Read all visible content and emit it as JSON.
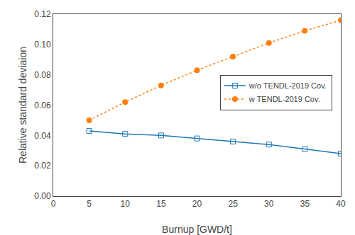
{
  "chart_data": {
    "type": "line",
    "xlabel": "Burnup [GWD/t]",
    "ylabel": "Relative standard deviaion",
    "x": [
      5,
      10,
      15,
      20,
      25,
      30,
      35,
      40
    ],
    "series": [
      {
        "name": "w/o TENDL-2019 Cov.",
        "marker": "square-open",
        "line_style": "solid",
        "values": [
          0.043,
          0.041,
          0.04,
          0.038,
          0.036,
          0.034,
          0.031,
          0.028
        ]
      },
      {
        "name": "w TENDL-2019 Cov.",
        "marker": "circle",
        "line_style": "dot",
        "values": [
          0.05,
          0.062,
          0.073,
          0.083,
          0.092,
          0.101,
          0.109,
          0.116
        ]
      }
    ],
    "xlim": [
      0,
      40
    ],
    "xticks": [
      0,
      5,
      10,
      15,
      20,
      25,
      30,
      35,
      40
    ],
    "ylim": [
      0.0,
      0.12
    ],
    "yticks": [
      {
        "value": 0,
        "label": "0.00"
      },
      {
        "value": 0.02,
        "label": "0.02"
      },
      {
        "value": 0.04,
        "label": "0.04"
      },
      {
        "value": 0.06,
        "label": "0.06"
      },
      {
        "value": 0.08,
        "label": "0.08"
      },
      {
        "value": 0.1,
        "label": "0.10"
      },
      {
        "value": 0.12,
        "label": "0.12"
      }
    ],
    "grid": false,
    "legend": "right"
  }
}
